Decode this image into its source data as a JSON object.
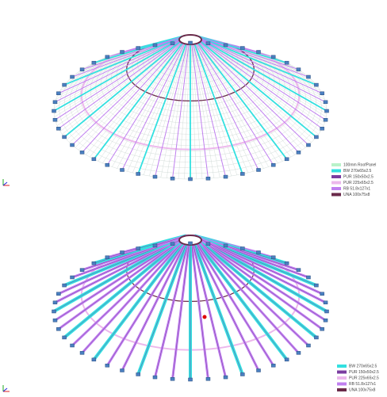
{
  "legends": [
    {
      "items": [
        {
          "label": "100mm RoofPanel",
          "color": "#b9f2c9"
        },
        {
          "label": "BW 270x65x2.5",
          "color": "#33e0e0"
        },
        {
          "label": "PUR 150x50x2.5",
          "color": "#7a3ca0"
        },
        {
          "label": "PUR 225x65x2.5",
          "color": "#ecb8ec"
        },
        {
          "label": "RB 51.8x127x1",
          "color": "#c080f0"
        },
        {
          "label": "UNA 100x75x8",
          "color": "#6a2a4a"
        }
      ]
    },
    {
      "items": [
        {
          "label": "BW 270x65x2.5",
          "color": "#33e0e0"
        },
        {
          "label": "PUR 150x50x2.5",
          "color": "#7a3ca0"
        },
        {
          "label": "PUR 225x65x2.5",
          "color": "#ecb8ec"
        },
        {
          "label": "RB 51.8x127x1",
          "color": "#c080f0"
        },
        {
          "label": "UNA 100x75x8",
          "color": "#6a2a4a"
        }
      ]
    }
  ]
}
